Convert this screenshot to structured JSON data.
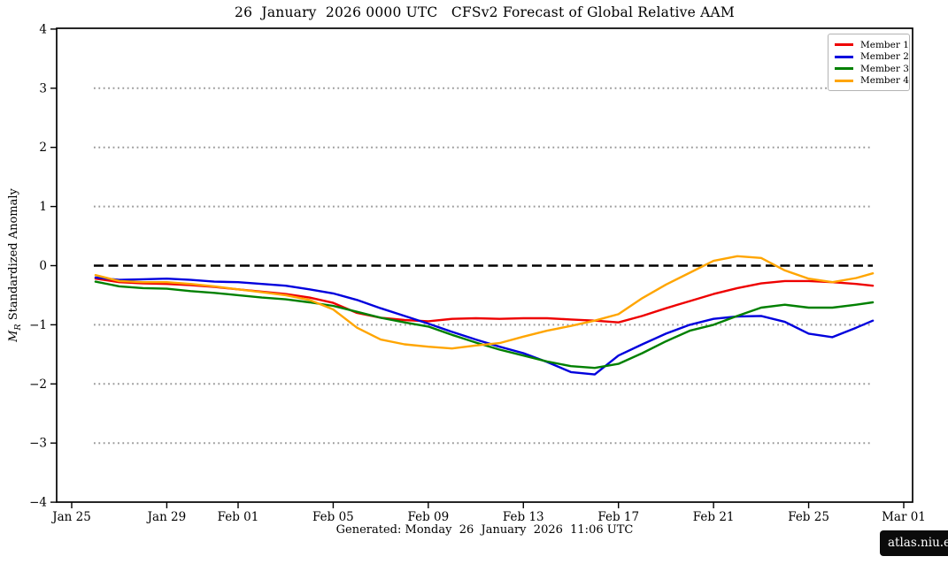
{
  "ui": {
    "title": "26  January  2026 0000 UTC   CFSv2 Forecast of Global Relative AAM",
    "ylabel": {
      "m": "M",
      "sub": "R",
      "rest": " Standardized Anomaly"
    },
    "generated": "Generated: Monday  26  January  2026  11:06 UTC",
    "badge": "atlas.niu.edu"
  },
  "chart_data": {
    "type": "line",
    "title": "26 January 2026 0000 UTC CFSv2 Forecast of Global Relative AAM",
    "xlabel": "",
    "ylabel": "M_R Standardized Anomaly",
    "ylim": [
      -4,
      4
    ],
    "grid": "horizontal-dotted",
    "legend_position": "top-right",
    "yticks": [
      {
        "v": 4,
        "label": "4"
      },
      {
        "v": 3,
        "label": "3"
      },
      {
        "v": 2,
        "label": "2"
      },
      {
        "v": 1,
        "label": "1"
      },
      {
        "v": 0,
        "label": "0"
      },
      {
        "v": -1,
        "label": "−1"
      },
      {
        "v": -2,
        "label": "−2"
      },
      {
        "v": -3,
        "label": "−3"
      },
      {
        "v": -4,
        "label": "−4"
      }
    ],
    "xticks": [
      {
        "day": 0,
        "label": "Jan 25"
      },
      {
        "day": 4,
        "label": "Jan 29"
      },
      {
        "day": 7,
        "label": "Feb 01"
      },
      {
        "day": 11,
        "label": "Feb 05"
      },
      {
        "day": 15,
        "label": "Feb 09"
      },
      {
        "day": 19,
        "label": "Feb 13"
      },
      {
        "day": 23,
        "label": "Feb 17"
      },
      {
        "day": 27,
        "label": "Feb 21"
      },
      {
        "day": 31,
        "label": "Feb 25"
      },
      {
        "day": 35,
        "label": "Mar 01"
      }
    ],
    "x_unit": "days since Jan 25",
    "x": [
      1,
      2,
      3,
      4,
      5,
      6,
      7,
      8,
      9,
      10,
      11,
      12,
      13,
      14,
      15,
      16,
      17,
      18,
      19,
      20,
      21,
      22,
      23,
      24,
      25,
      26,
      27,
      28,
      29,
      30,
      31,
      32,
      33,
      33.7
    ],
    "x_dates": [
      "Jan 26",
      "Jan 27",
      "Jan 28",
      "Jan 29",
      "Jan 30",
      "Jan 31",
      "Feb 01",
      "Feb 02",
      "Feb 03",
      "Feb 04",
      "Feb 05",
      "Feb 06",
      "Feb 07",
      "Feb 08",
      "Feb 09",
      "Feb 10",
      "Feb 11",
      "Feb 12",
      "Feb 13",
      "Feb 14",
      "Feb 15",
      "Feb 16",
      "Feb 17",
      "Feb 18",
      "Feb 19",
      "Feb 20",
      "Feb 21",
      "Feb 22",
      "Feb 23",
      "Feb 24",
      "Feb 25",
      "Feb 26",
      "Feb 27",
      "Feb 28"
    ],
    "series": [
      {
        "name": "Member 1",
        "color": "#ee0000",
        "values": [
          -0.22,
          -0.28,
          -0.3,
          -0.31,
          -0.33,
          -0.36,
          -0.4,
          -0.44,
          -0.48,
          -0.54,
          -0.63,
          -0.8,
          -0.88,
          -0.92,
          -0.94,
          -0.9,
          -0.89,
          -0.9,
          -0.89,
          -0.89,
          -0.91,
          -0.93,
          -0.96,
          -0.85,
          -0.72,
          -0.6,
          -0.48,
          -0.38,
          -0.3,
          -0.26,
          -0.26,
          -0.28,
          -0.31,
          -0.34
        ]
      },
      {
        "name": "Member 2",
        "color": "#0000dd",
        "values": [
          -0.2,
          -0.24,
          -0.23,
          -0.22,
          -0.24,
          -0.27,
          -0.28,
          -0.31,
          -0.34,
          -0.4,
          -0.47,
          -0.58,
          -0.72,
          -0.85,
          -0.98,
          -1.12,
          -1.25,
          -1.37,
          -1.48,
          -1.63,
          -1.8,
          -1.84,
          -1.52,
          -1.33,
          -1.15,
          -1.0,
          -0.9,
          -0.86,
          -0.85,
          -0.95,
          -1.15,
          -1.21,
          -1.05,
          -0.93
        ]
      },
      {
        "name": "Member 3",
        "color": "#008000",
        "values": [
          -0.27,
          -0.35,
          -0.38,
          -0.39,
          -0.43,
          -0.46,
          -0.5,
          -0.54,
          -0.57,
          -0.62,
          -0.68,
          -0.78,
          -0.88,
          -0.96,
          -1.03,
          -1.17,
          -1.3,
          -1.42,
          -1.52,
          -1.62,
          -1.7,
          -1.73,
          -1.66,
          -1.48,
          -1.28,
          -1.1,
          -1.0,
          -0.85,
          -0.71,
          -0.66,
          -0.71,
          -0.71,
          -0.66,
          -0.62
        ]
      },
      {
        "name": "Member 4",
        "color": "#ffa500",
        "values": [
          -0.16,
          -0.26,
          -0.28,
          -0.28,
          -0.31,
          -0.35,
          -0.4,
          -0.45,
          -0.5,
          -0.58,
          -0.74,
          -1.05,
          -1.25,
          -1.33,
          -1.37,
          -1.4,
          -1.35,
          -1.31,
          -1.2,
          -1.1,
          -1.02,
          -0.93,
          -0.82,
          -0.55,
          -0.32,
          -0.12,
          0.08,
          0.16,
          0.13,
          -0.08,
          -0.22,
          -0.28,
          -0.21,
          -0.13
        ]
      }
    ],
    "reference_lines": {
      "zero_dashed": {
        "value": 0,
        "color": "#000000"
      },
      "dotted_values": [
        3,
        2,
        1,
        -1,
        -2,
        -3
      ],
      "dotted_color": "#999999",
      "span_days": [
        0.93,
        33.7
      ]
    }
  }
}
